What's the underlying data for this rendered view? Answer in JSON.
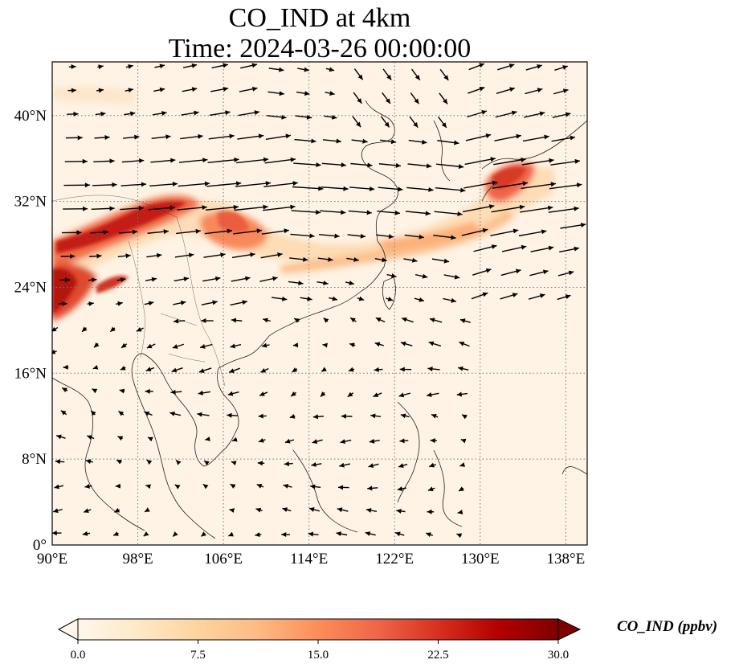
{
  "title": {
    "line1": "CO_IND at 4km",
    "line2": "Time: 2024-03-26 00:00:00"
  },
  "map": {
    "lon_range": [
      90,
      140
    ],
    "lat_range": [
      0,
      45
    ],
    "x_ticks": [
      "90°E",
      "98°E",
      "106°E",
      "114°E",
      "122°E",
      "130°E",
      "138°E"
    ],
    "x_tick_values": [
      90,
      98,
      106,
      114,
      122,
      130,
      138
    ],
    "y_ticks": [
      "0°",
      "8°N",
      "16°N",
      "24°N",
      "32°N",
      "40°N"
    ],
    "y_tick_values": [
      0,
      8,
      16,
      24,
      32,
      40
    ],
    "grid": "dotted",
    "wind_vectors": true
  },
  "colorbar": {
    "label": "CO_IND (ppbv)",
    "ticks": [
      "0.0",
      "7.5",
      "15.0",
      "22.5",
      "30.0"
    ],
    "tick_values": [
      0,
      7.5,
      15,
      22.5,
      30
    ],
    "range": [
      0,
      30
    ],
    "colormap": "OrRd",
    "colors": [
      "#fff7ec",
      "#fee8c8",
      "#fdd49e",
      "#fdbb84",
      "#fc8d59",
      "#ef6548",
      "#d7301f",
      "#b30000",
      "#7f0000"
    ],
    "extend": "both"
  }
}
